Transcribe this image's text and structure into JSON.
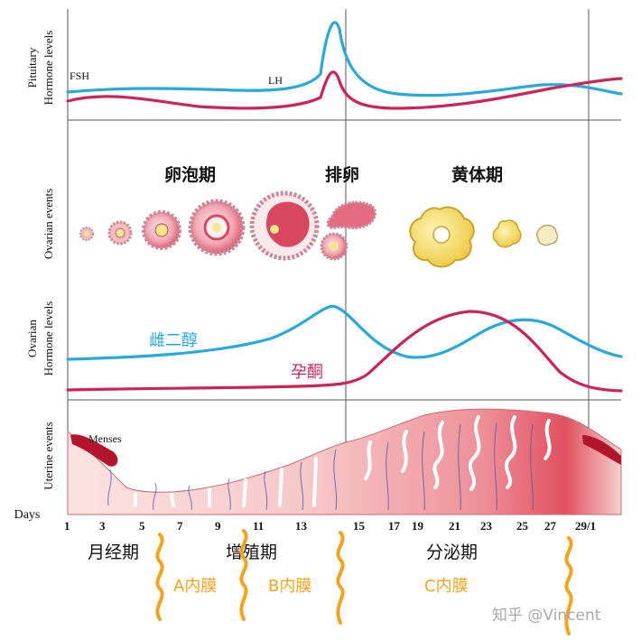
{
  "row_labels": {
    "pituitary": [
      "Pituitary",
      "Hormone levels"
    ],
    "ovarian_events": "Ovarian events",
    "ovarian_hormone": [
      "Ovarian",
      "Hormone levels"
    ],
    "uterine": "Uterine events",
    "days": "Days"
  },
  "hormones": {
    "fsh": "FSH",
    "lh": "LH",
    "estrogen": "雌二醇",
    "progesterone": "孕酮"
  },
  "ovarian_phases": {
    "follicular": "卵泡期",
    "ovulation": "排卵",
    "luteal": "黄体期"
  },
  "uterine_labels": {
    "menses": "Menses"
  },
  "day_ticks": [
    "1",
    "3",
    "5",
    "7",
    "9",
    "11",
    "13",
    "15",
    "17",
    "19",
    "21",
    "23",
    "25",
    "27",
    "29/1"
  ],
  "uterine_phases": {
    "menstrual": "月经期",
    "proliferative": "增殖期",
    "secretory": "分泌期"
  },
  "endometrium_labels": {
    "a": "A内膜",
    "b": "B内膜",
    "c": "C内膜"
  },
  "watermark": "知乎 @Vincent",
  "colors": {
    "blue": "#29a8dc",
    "crimson": "#cc2457",
    "orange": "#f2a51c",
    "grid": "#555555",
    "tissue_light": "#f8d4d3",
    "tissue_dark": "#e05867",
    "corpus": "#f3df6a"
  }
}
